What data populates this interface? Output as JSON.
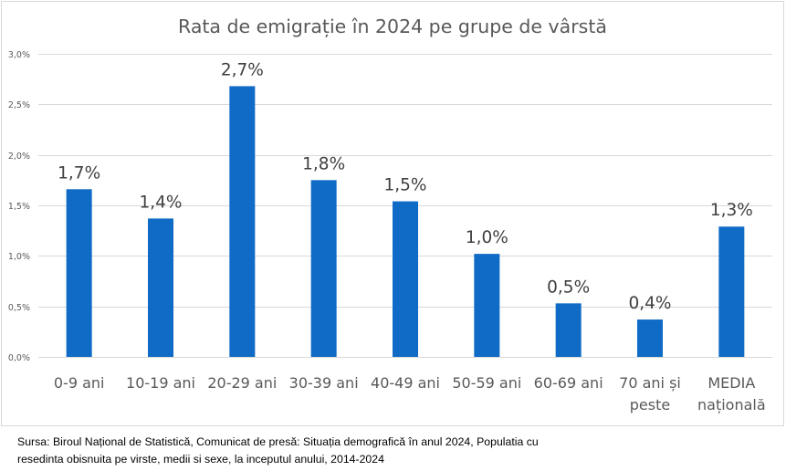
{
  "chart_data": {
    "type": "bar",
    "title": "Rata de emigrație în 2024 pe grupe de vârstă",
    "xlabel": "",
    "ylabel": "",
    "ylim": [
      0,
      3.0
    ],
    "yticks": [
      0,
      0.5,
      1.0,
      1.5,
      2.0,
      2.5,
      3.0
    ],
    "ytick_labels": [
      "0,0%",
      "0,5%",
      "1,0%",
      "1,5%",
      "2,0%",
      "2,5%",
      "3,0%"
    ],
    "grid": true,
    "legend": "none",
    "bar_color": "#0f6bc6",
    "categories": [
      [
        "0-9 ani"
      ],
      [
        "10-19 ani"
      ],
      [
        "20-29 ani"
      ],
      [
        "30-39 ani"
      ],
      [
        "40-49 ani"
      ],
      [
        "50-59 ani"
      ],
      [
        "60-69 ani"
      ],
      [
        "70 ani și",
        "peste"
      ],
      [
        "MEDIA",
        "națională"
      ]
    ],
    "values": [
      1.66,
      1.37,
      2.68,
      1.75,
      1.54,
      1.02,
      0.53,
      0.37,
      1.29
    ],
    "data_labels": [
      "1,7%",
      "1,4%",
      "2,7%",
      "1,8%",
      "1,5%",
      "1,0%",
      "0,5%",
      "0,4%",
      "1,3%"
    ]
  },
  "source": {
    "line1": "Sursa: Biroul Național de Statistică, Comunicat de presă: Situația demografică în anul 2024,  Populatia cu",
    "line2": "resedinta obisnuita pe virste, medii si sexe, la inceputul anului, 2014-2024"
  }
}
